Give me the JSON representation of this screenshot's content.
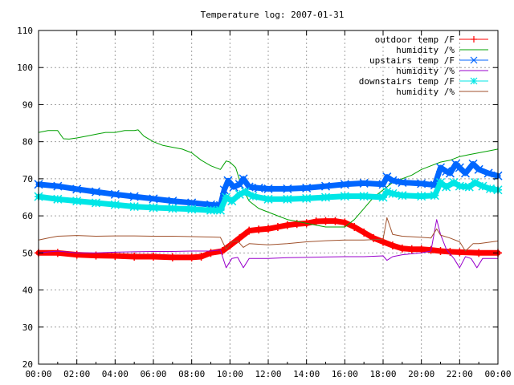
{
  "chart_data": {
    "type": "line",
    "title": "Temperature log: 2007-01-31",
    "xlabel": "",
    "ylabel": "",
    "xlim": [
      0,
      24
    ],
    "ylim": [
      20,
      110
    ],
    "grid": true,
    "legend_position": "top-right",
    "x_tick_labels": [
      "00:00",
      "02:00",
      "04:00",
      "06:00",
      "08:00",
      "10:00",
      "12:00",
      "14:00",
      "16:00",
      "18:00",
      "20:00",
      "22:00",
      "00:00"
    ],
    "x_ticks": [
      0,
      2,
      4,
      6,
      8,
      10,
      12,
      14,
      16,
      18,
      20,
      22,
      24
    ],
    "y_ticks": [
      20,
      30,
      40,
      50,
      60,
      70,
      80,
      90,
      100,
      110
    ],
    "y_tick_labels": [
      "20",
      "30",
      "40",
      "50",
      "60",
      "70",
      "80",
      "90",
      "100",
      "110"
    ],
    "series": [
      {
        "name": "outdoor temp /F",
        "color": "#ff0000",
        "marker": "plus",
        "width": 7,
        "points": [
          [
            0,
            50
          ],
          [
            1,
            50
          ],
          [
            2,
            49.5
          ],
          [
            3,
            49.3
          ],
          [
            4,
            49.2
          ],
          [
            5,
            49
          ],
          [
            6,
            49
          ],
          [
            7,
            48.8
          ],
          [
            8,
            48.8
          ],
          [
            8.5,
            49
          ],
          [
            9,
            50
          ],
          [
            9.6,
            50.5
          ],
          [
            10,
            52
          ],
          [
            10.5,
            54
          ],
          [
            11,
            56
          ],
          [
            11.5,
            56.3
          ],
          [
            12,
            56.5
          ],
          [
            12.5,
            57
          ],
          [
            13,
            57.5
          ],
          [
            13.5,
            57.8
          ],
          [
            14,
            58
          ],
          [
            14.5,
            58.5
          ],
          [
            15,
            58.6
          ],
          [
            15.5,
            58.6
          ],
          [
            16,
            58.2
          ],
          [
            16.5,
            57
          ],
          [
            17,
            55.5
          ],
          [
            17.5,
            54
          ],
          [
            18,
            53
          ],
          [
            18.5,
            52
          ],
          [
            19,
            51.2
          ],
          [
            19.5,
            51
          ],
          [
            20,
            51
          ],
          [
            20.5,
            50.8
          ],
          [
            21,
            50.5
          ],
          [
            21.5,
            50.3
          ],
          [
            22,
            50.2
          ],
          [
            23,
            50
          ],
          [
            24,
            50
          ]
        ]
      },
      {
        "name": "humidity /%",
        "color": "#00a000",
        "marker": "none",
        "width": 1,
        "points": [
          [
            0,
            82.5
          ],
          [
            0.5,
            83
          ],
          [
            1,
            83
          ],
          [
            1.3,
            80.8
          ],
          [
            1.6,
            80.7
          ],
          [
            2,
            81
          ],
          [
            2.5,
            81.5
          ],
          [
            3,
            82
          ],
          [
            3.5,
            82.5
          ],
          [
            4,
            82.5
          ],
          [
            4.5,
            83
          ],
          [
            5,
            83
          ],
          [
            5.2,
            83.2
          ],
          [
            5.5,
            81.5
          ],
          [
            6,
            80
          ],
          [
            6.5,
            79
          ],
          [
            7,
            78.5
          ],
          [
            7.5,
            78
          ],
          [
            8,
            77
          ],
          [
            8.5,
            75
          ],
          [
            9,
            73.5
          ],
          [
            9.5,
            72.5
          ],
          [
            9.8,
            74.8
          ],
          [
            10,
            74.5
          ],
          [
            10.3,
            73
          ],
          [
            10.6,
            68
          ],
          [
            11,
            64
          ],
          [
            11.5,
            62
          ],
          [
            12,
            61
          ],
          [
            12.5,
            60
          ],
          [
            13,
            59
          ],
          [
            13.5,
            58.5
          ],
          [
            14,
            58
          ],
          [
            14.5,
            57.5
          ],
          [
            15,
            57
          ],
          [
            15.5,
            57
          ],
          [
            16,
            57
          ],
          [
            16.5,
            59
          ],
          [
            17,
            62
          ],
          [
            17.5,
            65
          ],
          [
            18,
            67
          ],
          [
            18.5,
            69
          ],
          [
            19,
            70
          ],
          [
            19.5,
            71
          ],
          [
            20,
            72.5
          ],
          [
            20.5,
            73.5
          ],
          [
            21,
            74.5
          ],
          [
            21.5,
            75
          ],
          [
            22,
            76
          ],
          [
            22.5,
            76.5
          ],
          [
            23,
            77
          ],
          [
            23.5,
            77.5
          ],
          [
            24,
            78
          ]
        ]
      },
      {
        "name": "upstairs temp /F",
        "color": "#0066ff",
        "marker": "cross",
        "width": 7,
        "points": [
          [
            0,
            68.5
          ],
          [
            1,
            68
          ],
          [
            2,
            67.2
          ],
          [
            3,
            66.5
          ],
          [
            4,
            65.8
          ],
          [
            5,
            65.2
          ],
          [
            6,
            64.6
          ],
          [
            7,
            64
          ],
          [
            8,
            63.5
          ],
          [
            9,
            63
          ],
          [
            9.5,
            62.8
          ],
          [
            9.7,
            67
          ],
          [
            9.9,
            69.5
          ],
          [
            10.2,
            67.8
          ],
          [
            10.5,
            68.5
          ],
          [
            10.7,
            70
          ],
          [
            11,
            67.8
          ],
          [
            11.5,
            67.5
          ],
          [
            12,
            67.3
          ],
          [
            13,
            67.3
          ],
          [
            14,
            67.5
          ],
          [
            15,
            68
          ],
          [
            16,
            68.5
          ],
          [
            17,
            68.8
          ],
          [
            18,
            68.5
          ],
          [
            18.2,
            70.5
          ],
          [
            18.5,
            69.5
          ],
          [
            19,
            69
          ],
          [
            20,
            68.7
          ],
          [
            20.7,
            68.3
          ],
          [
            21,
            73
          ],
          [
            21.3,
            72
          ],
          [
            21.5,
            71.5
          ],
          [
            21.8,
            74
          ],
          [
            22,
            73
          ],
          [
            22.3,
            71.5
          ],
          [
            22.7,
            74
          ],
          [
            23,
            72.5
          ],
          [
            23.5,
            71.5
          ],
          [
            24,
            70.8
          ]
        ]
      },
      {
        "name": "humidity /%",
        "color": "#9900cc",
        "marker": "none",
        "width": 1,
        "points": [
          [
            0,
            50
          ],
          [
            1,
            50.5
          ],
          [
            2,
            50
          ],
          [
            3,
            50
          ],
          [
            4,
            50.2
          ],
          [
            5,
            50.3
          ],
          [
            6,
            50.4
          ],
          [
            7,
            50.4
          ],
          [
            8,
            50.5
          ],
          [
            9,
            50.5
          ],
          [
            9.5,
            50.8
          ],
          [
            9.8,
            46
          ],
          [
            10.1,
            48.5
          ],
          [
            10.4,
            48.8
          ],
          [
            10.7,
            46
          ],
          [
            11,
            48.5
          ],
          [
            12,
            48.5
          ],
          [
            13,
            48.7
          ],
          [
            14,
            48.8
          ],
          [
            15,
            48.9
          ],
          [
            16,
            49
          ],
          [
            17,
            49
          ],
          [
            18,
            49.2
          ],
          [
            18.2,
            48
          ],
          [
            18.5,
            49
          ],
          [
            19,
            49.5
          ],
          [
            20,
            50
          ],
          [
            20.5,
            50.5
          ],
          [
            20.8,
            59
          ],
          [
            21,
            55
          ],
          [
            21.3,
            51
          ],
          [
            21.7,
            48.5
          ],
          [
            22,
            46
          ],
          [
            22.3,
            49
          ],
          [
            22.6,
            48.5
          ],
          [
            22.9,
            46
          ],
          [
            23.2,
            48.5
          ],
          [
            24,
            48.5
          ]
        ]
      },
      {
        "name": "downstairs temp /F",
        "color": "#00e6e6",
        "marker": "star",
        "width": 7,
        "points": [
          [
            0,
            65.2
          ],
          [
            1,
            64.5
          ],
          [
            2,
            64
          ],
          [
            3,
            63.5
          ],
          [
            4,
            63
          ],
          [
            5,
            62.5
          ],
          [
            6,
            62.2
          ],
          [
            7,
            62
          ],
          [
            8,
            61.8
          ],
          [
            9,
            61.5
          ],
          [
            9.5,
            61.5
          ],
          [
            9.8,
            65
          ],
          [
            10.1,
            64
          ],
          [
            10.5,
            65.8
          ],
          [
            10.8,
            66.5
          ],
          [
            11.2,
            65.3
          ],
          [
            12,
            64.5
          ],
          [
            13,
            64.5
          ],
          [
            14,
            64.7
          ],
          [
            15,
            65
          ],
          [
            16,
            65.3
          ],
          [
            17,
            65.3
          ],
          [
            18,
            65
          ],
          [
            18.2,
            66.5
          ],
          [
            18.5,
            66
          ],
          [
            19,
            65.5
          ],
          [
            20,
            65.3
          ],
          [
            20.7,
            65.5
          ],
          [
            21,
            69
          ],
          [
            21.3,
            67.8
          ],
          [
            21.7,
            69
          ],
          [
            22,
            68
          ],
          [
            22.5,
            67.8
          ],
          [
            22.8,
            69
          ],
          [
            23.2,
            68
          ],
          [
            23.6,
            67.3
          ],
          [
            24,
            67
          ]
        ]
      },
      {
        "name": "humidity /%",
        "color": "#a0522d",
        "marker": "none",
        "width": 1,
        "points": [
          [
            0,
            53.5
          ],
          [
            0.5,
            54
          ],
          [
            1,
            54.5
          ],
          [
            2,
            54.7
          ],
          [
            3,
            54.5
          ],
          [
            4,
            54.6
          ],
          [
            5,
            54.6
          ],
          [
            6,
            54.5
          ],
          [
            7,
            54.5
          ],
          [
            8,
            54.4
          ],
          [
            9,
            54.3
          ],
          [
            9.5,
            54.2
          ],
          [
            9.8,
            51
          ],
          [
            10.1,
            53
          ],
          [
            10.4,
            53.2
          ],
          [
            10.7,
            51.5
          ],
          [
            11,
            52.5
          ],
          [
            12,
            52.2
          ],
          [
            13,
            52.5
          ],
          [
            14,
            53
          ],
          [
            15,
            53.3
          ],
          [
            16,
            53.5
          ],
          [
            17,
            53.5
          ],
          [
            18,
            53.7
          ],
          [
            18.2,
            59.5
          ],
          [
            18.5,
            55
          ],
          [
            19,
            54.5
          ],
          [
            20,
            54.2
          ],
          [
            20.5,
            54
          ],
          [
            20.8,
            56.5
          ],
          [
            21,
            54.8
          ],
          [
            21.5,
            54
          ],
          [
            22,
            53
          ],
          [
            22.3,
            50.5
          ],
          [
            22.7,
            52.5
          ],
          [
            23,
            52.5
          ],
          [
            24,
            53.2
          ]
        ]
      }
    ]
  }
}
